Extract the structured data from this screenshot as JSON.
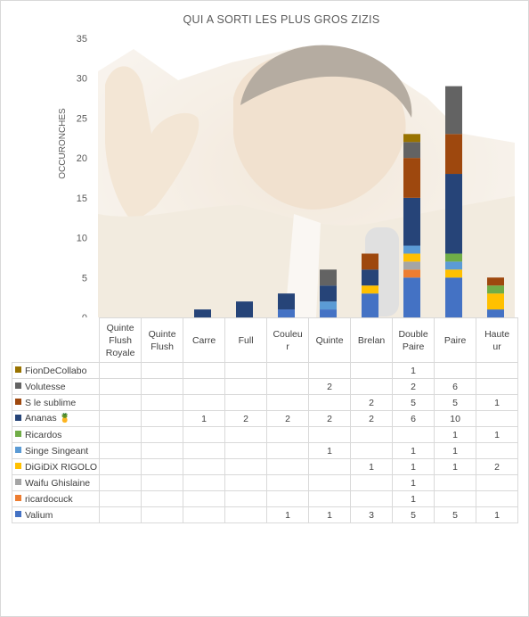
{
  "chart_data": {
    "type": "bar",
    "stacked": true,
    "title": "QUI A SORTI LES PLUS GROS ZIZIS",
    "ylabel": "OCCURONCHES",
    "ylim": [
      0,
      35
    ],
    "yticks": [
      "0",
      "5",
      "10",
      "15",
      "20",
      "25",
      "30",
      "35"
    ],
    "grid": false,
    "legend": "data-table",
    "categories": [
      "Quinte Flush Royale",
      "Quinte Flush",
      "Carre",
      "Full",
      "Couleur",
      "Quinte",
      "Brelan",
      "Double Paire",
      "Paire",
      "Hauteur"
    ],
    "category_display": [
      "Quinte\nFlush\nRoyale",
      "Quinte\nFlush",
      "Carre",
      "Full",
      "Couleu\nr",
      "Quinte",
      "Brelan",
      "Double\nPaire",
      "Paire",
      "Haute\nur"
    ],
    "series": [
      {
        "name": "Valium",
        "color": "#4472c4",
        "values": [
          null,
          null,
          null,
          null,
          1,
          1,
          3,
          5,
          5,
          1
        ]
      },
      {
        "name": "ricardocuck",
        "color": "#ed7d31",
        "values": [
          null,
          null,
          null,
          null,
          null,
          null,
          null,
          1,
          null,
          null
        ]
      },
      {
        "name": "Waifu Ghislaine",
        "color": "#a5a5a5",
        "values": [
          null,
          null,
          null,
          null,
          null,
          null,
          null,
          1,
          null,
          null
        ]
      },
      {
        "name": "DiGiDiX RIGOLO",
        "color": "#ffc000",
        "values": [
          null,
          null,
          null,
          null,
          null,
          null,
          1,
          1,
          1,
          2
        ]
      },
      {
        "name": "Singe Singeant",
        "color": "#5b9bd5",
        "values": [
          null,
          null,
          null,
          null,
          null,
          1,
          null,
          1,
          1,
          null
        ]
      },
      {
        "name": "Ricardos",
        "color": "#70ad47",
        "values": [
          null,
          null,
          null,
          null,
          null,
          null,
          null,
          null,
          1,
          1
        ]
      },
      {
        "name": "Ananas",
        "name_suffix": "🍍",
        "color": "#264478",
        "values": [
          null,
          null,
          1,
          2,
          2,
          2,
          2,
          6,
          10,
          null
        ]
      },
      {
        "name": "S le sublime",
        "color": "#9e480e",
        "values": [
          null,
          null,
          null,
          null,
          null,
          null,
          2,
          5,
          5,
          1
        ]
      },
      {
        "name": "Volutesse",
        "color": "#636363",
        "values": [
          null,
          null,
          null,
          null,
          null,
          2,
          null,
          2,
          6,
          null
        ]
      },
      {
        "name": "FionDeCollabo",
        "color": "#997300",
        "values": [
          null,
          null,
          null,
          null,
          null,
          null,
          null,
          1,
          null,
          null
        ]
      }
    ]
  }
}
